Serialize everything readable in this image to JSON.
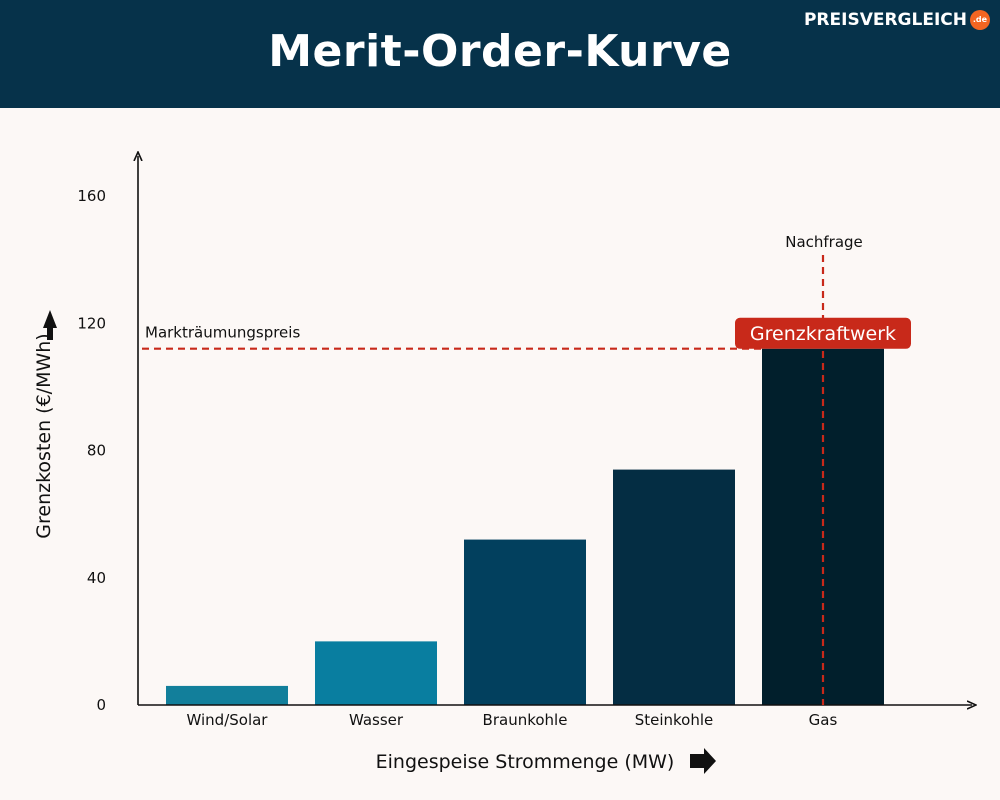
{
  "page": {
    "title": "Merit-Order-Kurve",
    "logo": {
      "text": "PREISVERGLEICH",
      "badge": ".de",
      "badge_color": "#f26522"
    },
    "header_color": "#06324a",
    "background_color": "#fcf8f6"
  },
  "chart_data": {
    "type": "bar",
    "title": "Merit-Order-Kurve",
    "xlabel": "Eingespeise Strommenge (MW)",
    "ylabel": "Grenzkosten (€/MWh)",
    "categories": [
      "Wind/Solar",
      "Wasser",
      "Braunkohle",
      "Steinkohle",
      "Gas"
    ],
    "values": [
      6,
      20,
      52,
      74,
      112
    ],
    "colors": [
      "#127f9b",
      "#097ea0",
      "#02405e",
      "#042d43",
      "#011f2c"
    ],
    "yticks": [
      0,
      40,
      80,
      120,
      160
    ],
    "ylim": [
      0,
      175
    ],
    "grid": false,
    "annotations": {
      "market_price": {
        "label": "Markträumungspreis",
        "value": 112,
        "color": "#c8291a"
      },
      "demand": {
        "label": "Nachfrage",
        "category": "Gas",
        "color": "#c8291a"
      },
      "marginal_plant": {
        "label": "Grenzkraftwerk",
        "value": 117,
        "bg_color": "#c8291a"
      }
    }
  }
}
